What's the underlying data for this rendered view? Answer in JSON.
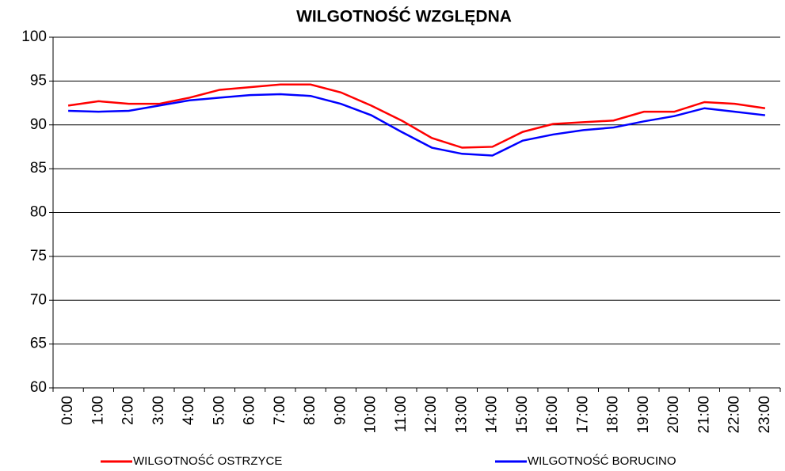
{
  "chart_data": {
    "type": "line",
    "title": "WILGOTNOŚĆ WZGLĘDNA",
    "categories": [
      "0:00",
      "1:00",
      "2:00",
      "3:00",
      "4:00",
      "5:00",
      "6:00",
      "7:00",
      "8:00",
      "9:00",
      "10:00",
      "11:00",
      "12:00",
      "13:00",
      "14:00",
      "15:00",
      "16:00",
      "17:00",
      "18:00",
      "19:00",
      "20:00",
      "21:00",
      "22:00",
      "23:00"
    ],
    "series": [
      {
        "name": "WILGOTNOŚĆ OSTRZYCE",
        "color": "#ff0000",
        "values": [
          92.2,
          92.7,
          92.4,
          92.4,
          93.1,
          94.0,
          94.3,
          94.6,
          94.6,
          93.7,
          92.2,
          90.5,
          88.5,
          87.4,
          87.5,
          89.2,
          90.1,
          90.3,
          90.5,
          91.5,
          91.5,
          92.6,
          92.4,
          91.9
        ]
      },
      {
        "name": "WILGOTNOŚĆ BORUCINO",
        "color": "#0000ff",
        "values": [
          91.6,
          91.5,
          91.6,
          92.2,
          92.8,
          93.1,
          93.4,
          93.5,
          93.3,
          92.4,
          91.1,
          89.2,
          87.4,
          86.7,
          86.5,
          88.2,
          88.9,
          89.4,
          89.7,
          90.4,
          91.0,
          91.9,
          91.5,
          91.1
        ]
      }
    ],
    "ylim": [
      60,
      100
    ],
    "yticks": [
      60,
      65,
      70,
      75,
      80,
      85,
      90,
      95,
      100
    ],
    "grid": true,
    "legend": "bottom"
  }
}
